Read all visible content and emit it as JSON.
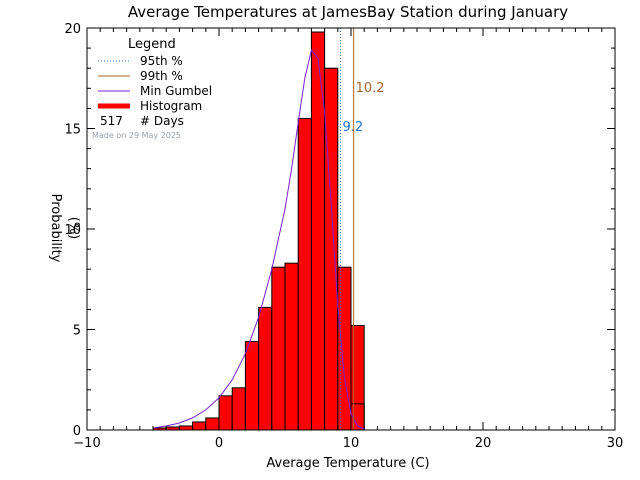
{
  "chart_data": {
    "type": "bar",
    "title": "Average Temperatures at JamesBay Station during January",
    "xlabel": "Average Temperature (C)",
    "ylabel": "Probability",
    "ylabel_unit": "(%)",
    "xlim": [
      -10,
      30
    ],
    "ylim": [
      0,
      20
    ],
    "x_ticks": [
      -10,
      0,
      10,
      20,
      30
    ],
    "y_ticks": [
      0,
      5,
      10,
      15,
      20
    ],
    "grid": false,
    "legend": {
      "position": "top-left",
      "title": "Legend",
      "entries": [
        {
          "label": "95th %",
          "style": "dotted",
          "color": "#1f77d4"
        },
        {
          "label": "99th %",
          "style": "solid",
          "color": "#a0642a"
        },
        {
          "label": "Min Gumbel",
          "style": "solid",
          "color": "#7a1fd6"
        },
        {
          "label": "Histogram",
          "style": "thick",
          "color": "#ff0000"
        }
      ],
      "count_value": "517",
      "count_label": "# Days"
    },
    "note": "Made on 29 May 2025",
    "histogram": {
      "bin_width": 1,
      "bin_starts": [
        -5,
        -4,
        -3,
        -2,
        -1,
        0,
        1,
        2,
        3,
        4,
        5,
        6,
        7,
        8,
        9,
        10
      ],
      "values": [
        0.1,
        0.15,
        0.2,
        0.4,
        0.6,
        1.7,
        2.1,
        4.4,
        6.1,
        8.1,
        8.3,
        15.5,
        19.8,
        18.0,
        8.1,
        5.2
      ],
      "extra_bins": [
        {
          "start": 10,
          "value": 1.3
        }
      ],
      "color": "#ff0000"
    },
    "percentiles": [
      {
        "name": "95th %",
        "value": 9.2,
        "label": "9.2",
        "color": "#1f77d4",
        "style": "dotted"
      },
      {
        "name": "99th %",
        "value": 10.2,
        "label": "10.2",
        "color": "#a0642a",
        "style": "solid"
      }
    ],
    "gumbel_curve": {
      "color": "#7a1fd6",
      "x": [
        -5.0,
        -4.0,
        -3.0,
        -2.0,
        -1.0,
        0.0,
        1.0,
        2.0,
        3.0,
        4.0,
        5.0,
        5.5,
        6.0,
        6.5,
        7.0,
        7.5,
        8.0,
        8.5,
        9.0,
        9.5,
        10.0,
        10.5,
        11.0
      ],
      "y": [
        0.1,
        0.2,
        0.35,
        0.6,
        1.0,
        1.6,
        2.5,
        3.8,
        5.6,
        8.0,
        11.0,
        13.0,
        15.3,
        17.5,
        18.9,
        18.5,
        15.8,
        11.2,
        6.2,
        2.6,
        0.8,
        0.2,
        0.05
      ]
    }
  }
}
